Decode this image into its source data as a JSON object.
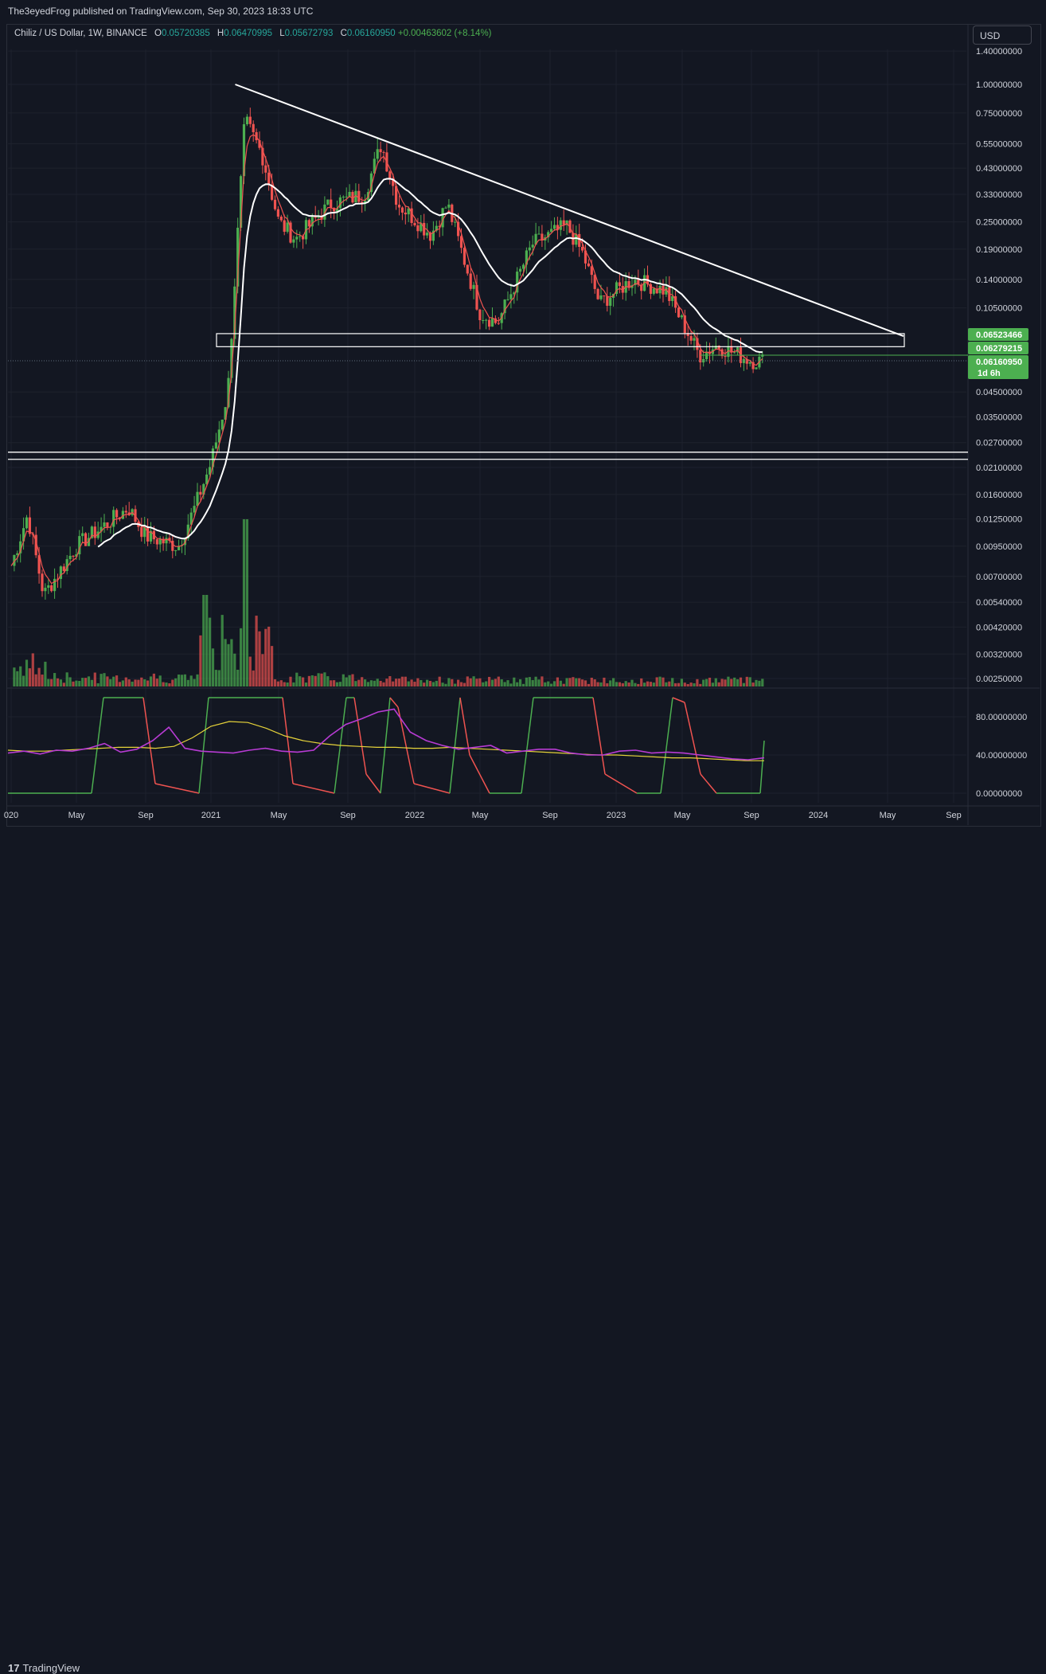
{
  "header": {
    "published": "The3eyedFrog published on TradingView.com, Sep 30, 2023 18:33 UTC"
  },
  "legend": {
    "symbol": "Chiliz / US Dollar, 1W, BINANCE",
    "o_label": "O",
    "o_value": "0.05720385",
    "h_label": "H",
    "h_value": "0.06470995",
    "l_label": "L",
    "l_value": "0.05672793",
    "c_label": "C",
    "c_value": "0.06160950",
    "change": "+0.00463602 (+8.14%)"
  },
  "currency_button": "USD",
  "footer": {
    "brand_mark": "17",
    "brand": "TradingView"
  },
  "colors": {
    "background": "#131722",
    "up": "#4caf50",
    "down": "#ef5350",
    "ema_fast": "#ef5350",
    "ema_slow": "#ffffff",
    "rsi": "#b73bd3",
    "rsi_ma": "#e6d33a",
    "badge_green": "#4caf50",
    "grid": "#1e222d"
  },
  "chart_data": [
    {
      "type": "candlestick",
      "title": "Chiliz / US Dollar, 1W, BINANCE",
      "scale": "log",
      "y_ticks": [
        "1.40000000",
        "1.00000000",
        "0.75000000",
        "0.55000000",
        "0.43000000",
        "0.33000000",
        "0.25000000",
        "0.19000000",
        "0.14000000",
        "0.10500000",
        "0.04500000",
        "0.03500000",
        "0.02700000",
        "0.02100000",
        "0.01600000",
        "0.01250000",
        "0.00950000",
        "0.00700000",
        "0.00540000",
        "0.00420000",
        "0.00320000",
        "0.00250000"
      ],
      "x_ticks": [
        "020",
        "May",
        "Sep",
        "2021",
        "May",
        "Sep",
        "2022",
        "May",
        "Sep",
        "2023",
        "May",
        "Sep",
        "2024",
        "May",
        "Sep"
      ],
      "price_badges": [
        {
          "value": "0.06523466"
        },
        {
          "value": "0.06279215"
        },
        {
          "value": "0.06160950",
          "sub": "1d 6h"
        }
      ],
      "anchors": [
        {
          "date": "2020-01",
          "close": 0.0078
        },
        {
          "date": "2020-02",
          "close": 0.013
        },
        {
          "date": "2020-03",
          "close": 0.0058
        },
        {
          "date": "2020-05",
          "close": 0.0095
        },
        {
          "date": "2020-08",
          "close": 0.014
        },
        {
          "date": "2020-09",
          "close": 0.0105
        },
        {
          "date": "2020-11",
          "close": 0.0095
        },
        {
          "date": "2020-12",
          "close": 0.014
        },
        {
          "date": "2021-01",
          "close": 0.022
        },
        {
          "date": "2021-02",
          "close": 0.045
        },
        {
          "date": "2021-03",
          "close": 0.7
        },
        {
          "date": "2021-04",
          "close": 0.5
        },
        {
          "date": "2021-05",
          "close": 0.25
        },
        {
          "date": "2021-06",
          "close": 0.21
        },
        {
          "date": "2021-08",
          "close": 0.3
        },
        {
          "date": "2021-10",
          "close": 0.33
        },
        {
          "date": "2021-11",
          "close": 0.55
        },
        {
          "date": "2021-12",
          "close": 0.3
        },
        {
          "date": "2022-02",
          "close": 0.22
        },
        {
          "date": "2022-03",
          "close": 0.3
        },
        {
          "date": "2022-05",
          "close": 0.1
        },
        {
          "date": "2022-06",
          "close": 0.09
        },
        {
          "date": "2022-08",
          "close": 0.2
        },
        {
          "date": "2022-10",
          "close": 0.24
        },
        {
          "date": "2022-11",
          "close": 0.18
        },
        {
          "date": "2022-12",
          "close": 0.11
        },
        {
          "date": "2023-02",
          "close": 0.14
        },
        {
          "date": "2023-04",
          "close": 0.125
        },
        {
          "date": "2023-06",
          "close": 0.065
        },
        {
          "date": "2023-07",
          "close": 0.072
        },
        {
          "date": "2023-09",
          "close": 0.0616
        }
      ],
      "drawings": [
        {
          "kind": "trendline",
          "from": {
            "date": "2021-03",
            "price": 1.0
          },
          "to": {
            "date": "2024-05",
            "price": 0.079
          }
        },
        {
          "kind": "box",
          "from": {
            "date": "2021-01",
            "price": 0.081
          },
          "to": {
            "date": "2024-05",
            "price": 0.071
          }
        },
        {
          "kind": "hline",
          "price": 0.0245
        },
        {
          "kind": "hline",
          "price": 0.0228
        }
      ]
    },
    {
      "type": "line",
      "title": "",
      "y_ticks": [
        "80.00000000",
        "40.00000000",
        "0.00000000"
      ],
      "ylim": [
        0,
        100
      ],
      "series": [
        {
          "values": [
            42,
            44,
            41,
            45,
            44,
            47,
            52,
            43,
            46,
            55,
            69,
            47,
            44,
            43,
            42,
            45,
            47,
            44,
            43,
            45,
            60,
            72,
            78,
            85,
            88,
            64,
            55,
            50,
            46,
            48,
            50,
            42,
            44,
            46,
            46,
            42,
            40,
            40,
            44,
            45,
            42,
            43,
            42,
            40,
            38,
            36,
            35,
            37
          ]
        },
        {
          "values": [
            45,
            44,
            44,
            45,
            46,
            47,
            48,
            48,
            47,
            49,
            58,
            70,
            75,
            74,
            68,
            60,
            55,
            52,
            50,
            49,
            48,
            48,
            47,
            47,
            48,
            47,
            46,
            45,
            44,
            43,
            42,
            41,
            40,
            40,
            39,
            38,
            37,
            37,
            36,
            35,
            34,
            34
          ]
        }
      ]
    }
  ]
}
